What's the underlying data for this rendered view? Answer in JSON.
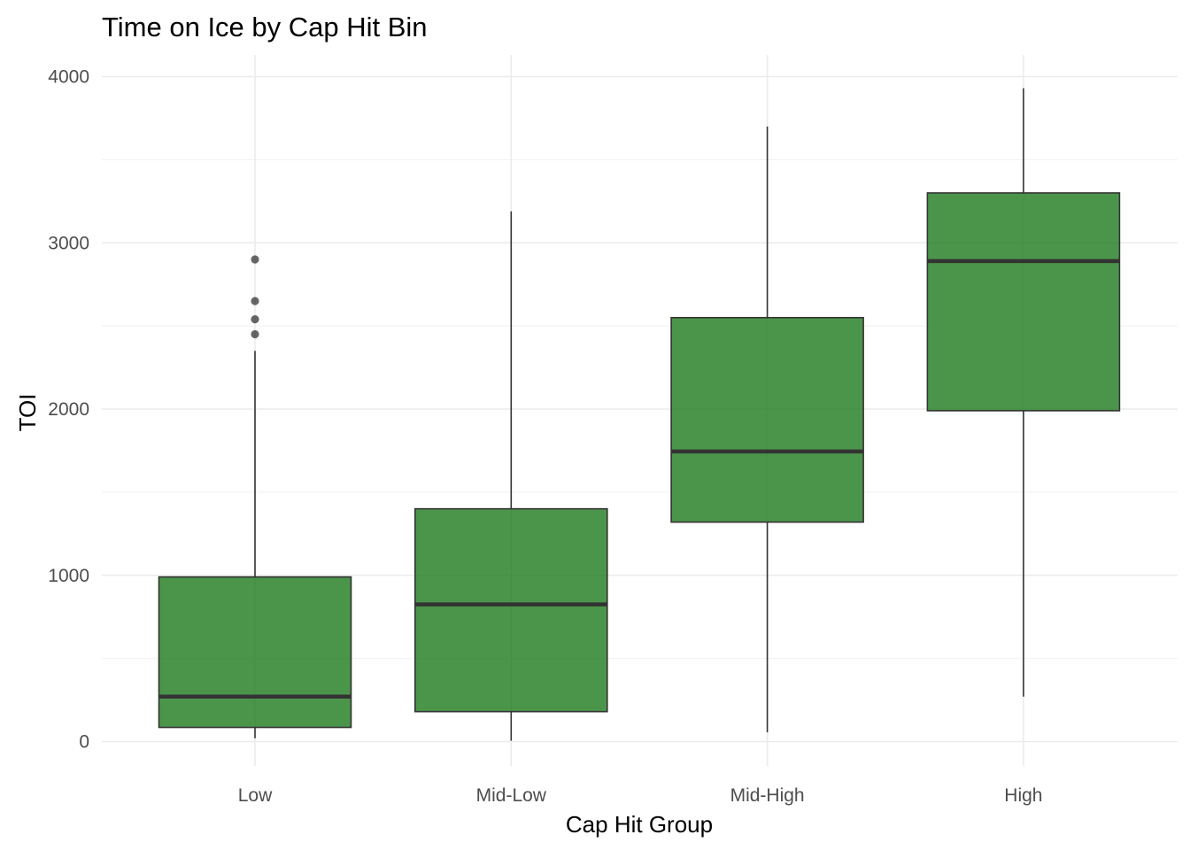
{
  "chart_data": {
    "type": "boxplot",
    "title": "Time on Ice by Cap Hit Bin",
    "xlabel": "Cap Hit Group",
    "ylabel": "TOI",
    "ylim": [
      -150,
      4120
    ],
    "y_ticks": [
      0,
      1000,
      2000,
      3000,
      4000
    ],
    "y_tick_labels": [
      "0",
      "1000",
      "2000",
      "3000",
      "4000"
    ],
    "grid": true,
    "categories": [
      "Low",
      "Mid-Low",
      "Mid-High",
      "High"
    ],
    "boxes": [
      {
        "category": "Low",
        "whisker_low": 20,
        "q1": 85,
        "median": 270,
        "q3": 990,
        "whisker_high": 2350,
        "outliers": [
          2450,
          2540,
          2650,
          2900
        ]
      },
      {
        "category": "Mid-Low",
        "whisker_low": 5,
        "q1": 180,
        "median": 825,
        "q3": 1400,
        "whisker_high": 3190,
        "outliers": []
      },
      {
        "category": "Mid-High",
        "whisker_low": 55,
        "q1": 1320,
        "median": 1745,
        "q3": 2550,
        "whisker_high": 3700,
        "outliers": []
      },
      {
        "category": "High",
        "whisker_low": 270,
        "q1": 1990,
        "median": 2890,
        "q3": 3300,
        "whisker_high": 3930,
        "outliers": []
      }
    ],
    "colors": {
      "box_fill": "#1e7b1e",
      "outline": "#333333",
      "grid": "#ebebeb"
    }
  }
}
